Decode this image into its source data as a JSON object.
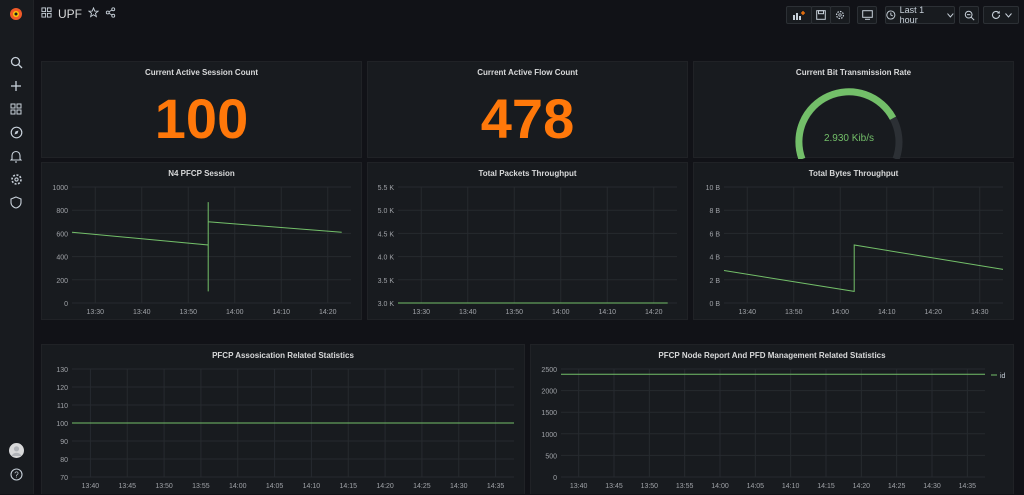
{
  "dashboard": {
    "title": "UPF",
    "time_range": "Last 1 hour"
  },
  "colors": {
    "accent": "#ff780a",
    "series": "#73bf69",
    "grid": "#262a2f",
    "axis_text": "#a0a3a8"
  },
  "sidebar": {
    "icons": [
      "search-icon",
      "plus-icon",
      "dashboards-icon",
      "explore-icon",
      "alert-icon",
      "gear-icon",
      "shield-icon"
    ]
  },
  "stats": [
    {
      "title": "Current Active Session Count",
      "value": "100"
    },
    {
      "title": "Current Active Flow Count",
      "value": "478"
    }
  ],
  "gauge": {
    "title": "Current Bit Transmission Rate",
    "value": "2.930 Kib/s",
    "fraction": 0.78
  },
  "chart_data": [
    {
      "type": "line",
      "title": "N4 PFCP Session",
      "x_ticks": [
        "13:30",
        "13:40",
        "13:50",
        "14:00",
        "14:10",
        "14:20"
      ],
      "y_ticks": [
        "0",
        "200",
        "400",
        "600",
        "800",
        "1000"
      ],
      "ylim": [
        0,
        1000
      ],
      "xlim": [
        0,
        60
      ],
      "series": [
        {
          "points": [
            [
              0,
              610
            ],
            [
              29.3,
              500
            ],
            [
              29.3,
              100
            ],
            [
              29.3,
              870
            ],
            [
              29.3,
              700
            ],
            [
              58,
              610
            ]
          ]
        }
      ]
    },
    {
      "type": "line",
      "title": "Total Packets Throughput",
      "x_ticks": [
        "13:30",
        "13:40",
        "13:50",
        "14:00",
        "14:10",
        "14:20"
      ],
      "y_ticks": [
        "3.0 K",
        "3.5 K",
        "4.0 K",
        "4.5 K",
        "5.0 K",
        "5.5 K"
      ],
      "ylim": [
        3.0,
        5.5
      ],
      "xlim": [
        0,
        60
      ],
      "series": [
        {
          "points": [
            [
              0,
              3.0
            ],
            [
              58,
              3.0
            ]
          ]
        }
      ]
    },
    {
      "type": "line",
      "title": "Total Bytes Throughput",
      "x_ticks": [
        "13:40",
        "13:50",
        "14:00",
        "14:10",
        "14:20",
        "14:30"
      ],
      "y_ticks": [
        "0 B",
        "2 B",
        "4 B",
        "6 B",
        "8 B",
        "10 B"
      ],
      "ylim": [
        0,
        10
      ],
      "xlim": [
        0,
        60
      ],
      "series": [
        {
          "points": [
            [
              0,
              2.8
            ],
            [
              28,
              1.0
            ],
            [
              28,
              5.0
            ],
            [
              60,
              2.9
            ]
          ]
        }
      ]
    },
    {
      "type": "line",
      "title": "PFCP Assosication Related Statistics",
      "x_ticks": [
        "13:40",
        "13:45",
        "13:50",
        "13:55",
        "14:00",
        "14:05",
        "14:10",
        "14:15",
        "14:20",
        "14:25",
        "14:30",
        "14:35"
      ],
      "y_ticks": [
        "70",
        "80",
        "90",
        "100",
        "110",
        "120",
        "130"
      ],
      "ylim": [
        70,
        130
      ],
      "xlim": [
        0,
        60
      ],
      "series": [
        {
          "points": [
            [
              0,
              100
            ],
            [
              60,
              100
            ]
          ]
        }
      ]
    },
    {
      "type": "line",
      "title": "PFCP Node Report And PFD Management Related Statistics",
      "x_ticks": [
        "13:40",
        "13:45",
        "13:50",
        "13:55",
        "14:00",
        "14:05",
        "14:10",
        "14:15",
        "14:20",
        "14:25",
        "14:30",
        "14:35"
      ],
      "y_ticks": [
        "0",
        "500",
        "1000",
        "1500",
        "2000",
        "2500"
      ],
      "ylim": [
        0,
        2500
      ],
      "xlim": [
        0,
        60
      ],
      "legend": [
        "id"
      ],
      "series": [
        {
          "name": "id",
          "points": [
            [
              0,
              2380
            ],
            [
              60,
              2380
            ]
          ]
        }
      ]
    }
  ]
}
